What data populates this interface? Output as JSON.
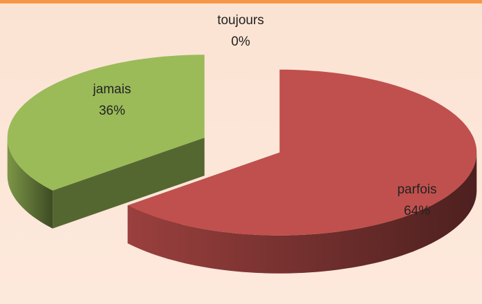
{
  "chart_data": {
    "type": "pie3d",
    "categories": [
      "toujours",
      "parfois",
      "jamais"
    ],
    "values": [
      0,
      64,
      36
    ],
    "value_labels": [
      "0%",
      "64%",
      "36%"
    ],
    "colors": [
      "#4f81bd",
      "#c0504d",
      "#9bbb59"
    ]
  }
}
